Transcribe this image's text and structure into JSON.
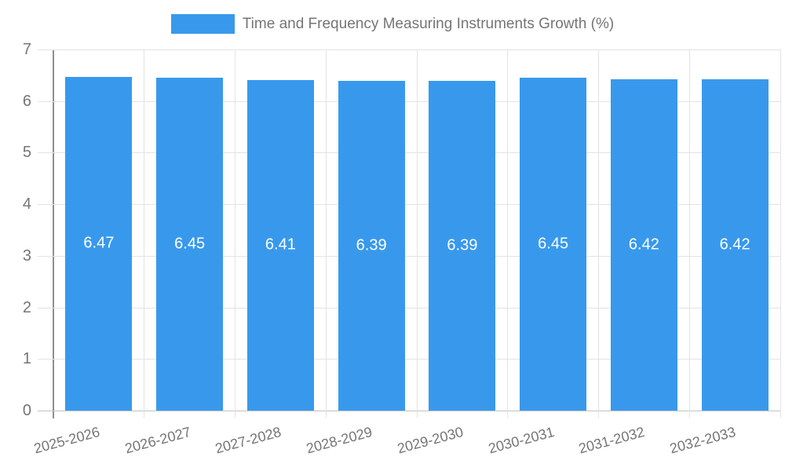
{
  "chart_data": {
    "type": "bar",
    "title": "Time and Frequency Measuring Instruments Growth (%)",
    "categories": [
      "2025-2026",
      "2026-2027",
      "2027-2028",
      "2028-2029",
      "2029-2030",
      "2030-2031",
      "2031-2032",
      "2032-2033"
    ],
    "values": [
      6.47,
      6.45,
      6.41,
      6.39,
      6.39,
      6.45,
      6.42,
      6.42
    ],
    "value_labels": [
      "6.47",
      "6.45",
      "6.41",
      "6.39",
      "6.39",
      "6.45",
      "6.42",
      "6.42"
    ],
    "xlabel": "",
    "ylabel": "",
    "ylim": [
      0,
      7
    ],
    "ytick_step": 1,
    "yticks": [
      "0",
      "1",
      "2",
      "3",
      "4",
      "5",
      "6",
      "7"
    ],
    "grid": true,
    "legend_position": "top",
    "colors": {
      "bar": "#3899ec",
      "value_label": "#ffffff",
      "axis_text": "#757575",
      "axis_line": "#8f8f8f",
      "baseline": "#c2c2c2",
      "gridline": "#e3e3e3",
      "background": "#ffffff"
    }
  }
}
